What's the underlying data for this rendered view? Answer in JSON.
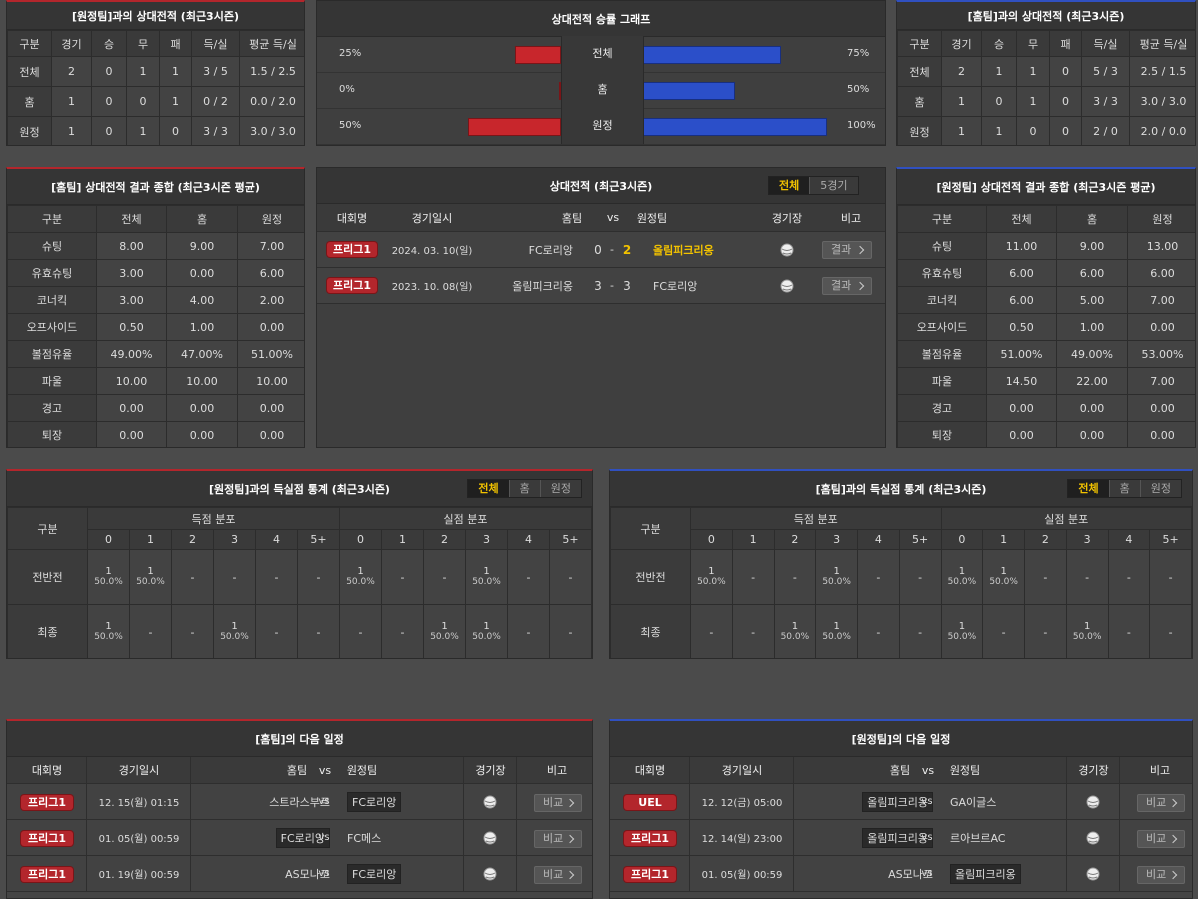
{
  "h2h_away": {
    "title": "[원정팀]과의 상대전적 (최근3시즌)",
    "columns": [
      "구분",
      "경기",
      "승",
      "무",
      "패",
      "득/실",
      "평균 득/실"
    ],
    "rows": [
      [
        "전체",
        2,
        0,
        1,
        1,
        "3 / 5",
        "1.5 / 2.5"
      ],
      [
        "홈",
        1,
        0,
        0,
        1,
        "0 / 2",
        "0.0 / 2.0"
      ],
      [
        "원정",
        1,
        0,
        1,
        0,
        "3 / 3",
        "3.0 / 3.0"
      ]
    ]
  },
  "winrate": {
    "title": "상대전적 승률 그래프",
    "rows": [
      {
        "label": "전체",
        "away": 25,
        "away_label": "25%",
        "home": 75,
        "home_label": "75%"
      },
      {
        "label": "홈",
        "away": 0,
        "away_label": "0%",
        "home": 50,
        "home_label": "50%"
      },
      {
        "label": "원정",
        "away": 50,
        "away_label": "50%",
        "home": 100,
        "home_label": "100%"
      }
    ]
  },
  "h2h_home": {
    "title": "[홈팀]과의 상대전적 (최근3시즌)",
    "columns": [
      "구분",
      "경기",
      "승",
      "무",
      "패",
      "득/실",
      "평균 득/실"
    ],
    "rows": [
      [
        "전체",
        2,
        1,
        1,
        0,
        "5 / 3",
        "2.5 / 1.5"
      ],
      [
        "홈",
        1,
        0,
        1,
        0,
        "3 / 3",
        "3.0 / 3.0"
      ],
      [
        "원정",
        1,
        1,
        0,
        0,
        "2 / 0",
        "2.0 / 0.0"
      ]
    ]
  },
  "summary_home": {
    "title": "[홈팀] 상대전적 결과 종합 (최근3시즌 평균)",
    "columns": [
      "구분",
      "전체",
      "홈",
      "원정"
    ],
    "rows": [
      [
        "슈팅",
        "8.00",
        "9.00",
        "7.00"
      ],
      [
        "유효슈팅",
        "3.00",
        "0.00",
        "6.00"
      ],
      [
        "코너킥",
        "3.00",
        "4.00",
        "2.00"
      ],
      [
        "오프사이드",
        "0.50",
        "1.00",
        "0.00"
      ],
      [
        "볼점유율",
        "49.00%",
        "47.00%",
        "51.00%"
      ],
      [
        "파울",
        "10.00",
        "10.00",
        "10.00"
      ],
      [
        "경고",
        "0.00",
        "0.00",
        "0.00"
      ],
      [
        "퇴장",
        "0.00",
        "0.00",
        "0.00"
      ]
    ]
  },
  "matches": {
    "title": "상대전적 (최근3시즌)",
    "tabs": [
      "전체",
      "5경기"
    ],
    "columns": [
      "대회명",
      "경기일시",
      "홈팀",
      "vs",
      "원정팀",
      "경기장",
      "비고"
    ],
    "rows": [
      {
        "league": "프리그1",
        "date": "2024. 03. 10(일)",
        "home": "FC로리앙",
        "home_score": 0,
        "sep": "-",
        "away_score": 2,
        "away": "올림피크리옹",
        "button": "결과"
      },
      {
        "league": "프리그1",
        "date": "2023. 10. 08(일)",
        "home": "올림피크리옹",
        "home_score": 3,
        "sep": "-",
        "away_score": 3,
        "away": "FC로리앙",
        "button": "결과"
      }
    ]
  },
  "summary_away": {
    "title": "[원정팀] 상대전적 결과 종합 (최근3시즌 평균)",
    "columns": [
      "구분",
      "전체",
      "홈",
      "원정"
    ],
    "rows": [
      [
        "슈팅",
        "11.00",
        "9.00",
        "13.00"
      ],
      [
        "유효슈팅",
        "6.00",
        "6.00",
        "6.00"
      ],
      [
        "코너킥",
        "6.00",
        "5.00",
        "7.00"
      ],
      [
        "오프사이드",
        "0.50",
        "1.00",
        "0.00"
      ],
      [
        "볼점유율",
        "51.00%",
        "49.00%",
        "53.00%"
      ],
      [
        "파울",
        "14.50",
        "22.00",
        "7.00"
      ],
      [
        "경고",
        "0.00",
        "0.00",
        "0.00"
      ],
      [
        "퇴장",
        "0.00",
        "0.00",
        "0.00"
      ]
    ]
  },
  "goals_away": {
    "title": "[원정팀]과의 득실점 통계 (최근3시즌)",
    "tabs": [
      "전체",
      "홈",
      "원정"
    ],
    "col_label": "구분",
    "groups": [
      "득점 분포",
      "실점 분포"
    ],
    "buckets": [
      "0",
      "1",
      "2",
      "3",
      "4",
      "5+"
    ],
    "rows": [
      {
        "label": "전반전",
        "cells": [
          {
            "count": 1,
            "pct": "50.0%"
          },
          {
            "count": 1,
            "pct": "50.0%"
          },
          "-",
          "-",
          "-",
          "-",
          {
            "count": 1,
            "pct": "50.0%"
          },
          "-",
          "-",
          {
            "count": 1,
            "pct": "50.0%"
          },
          "-",
          "-"
        ]
      },
      {
        "label": "최종",
        "cells": [
          {
            "count": 1,
            "pct": "50.0%"
          },
          "-",
          "-",
          {
            "count": 1,
            "pct": "50.0%"
          },
          "-",
          "-",
          "-",
          "-",
          {
            "count": 1,
            "pct": "50.0%"
          },
          {
            "count": 1,
            "pct": "50.0%"
          },
          "-",
          "-"
        ]
      }
    ]
  },
  "goals_home": {
    "title": "[홈팀]과의 득실점 통계 (최근3시즌)",
    "tabs": [
      "전체",
      "홈",
      "원정"
    ],
    "col_label": "구분",
    "groups": [
      "득점 분포",
      "실점 분포"
    ],
    "buckets": [
      "0",
      "1",
      "2",
      "3",
      "4",
      "5+"
    ],
    "rows": [
      {
        "label": "전반전",
        "cells": [
          {
            "count": 1,
            "pct": "50.0%"
          },
          "-",
          "-",
          {
            "count": 1,
            "pct": "50.0%"
          },
          "-",
          "-",
          {
            "count": 1,
            "pct": "50.0%"
          },
          {
            "count": 1,
            "pct": "50.0%"
          },
          "-",
          "-",
          "-",
          "-"
        ]
      },
      {
        "label": "최종",
        "cells": [
          "-",
          "-",
          {
            "count": 1,
            "pct": "50.0%"
          },
          {
            "count": 1,
            "pct": "50.0%"
          },
          "-",
          "-",
          {
            "count": 1,
            "pct": "50.0%"
          },
          "-",
          "-",
          {
            "count": 1,
            "pct": "50.0%"
          },
          "-",
          "-"
        ]
      }
    ]
  },
  "schedule_home": {
    "title": "[홈팀]의 다음 일정",
    "columns": [
      "대회명",
      "경기일시",
      "홈팀",
      "vs",
      "원정팀",
      "경기장",
      "비고"
    ],
    "rows": [
      {
        "league": "프리그1",
        "date": "12. 15(월) 01:15",
        "home": "스트라스부르",
        "vs": "vs",
        "away": "FC로리앙",
        "button": "비교"
      },
      {
        "league": "프리그1",
        "date": "01. 05(월) 00:59",
        "home": "FC로리앙",
        "vs": "vs",
        "away": "FC메스",
        "button": "비교"
      },
      {
        "league": "프리그1",
        "date": "01. 19(월) 00:59",
        "home": "AS모나코",
        "vs": "vs",
        "away": "FC로리앙",
        "button": "비교"
      }
    ]
  },
  "schedule_away": {
    "title": "[원정팀]의 다음 일정",
    "columns": [
      "대회명",
      "경기일시",
      "홈팀",
      "vs",
      "원정팀",
      "경기장",
      "비고"
    ],
    "rows": [
      {
        "league": "UEL",
        "date": "12. 12(금) 05:00",
        "home": "올림피크리옹",
        "vs": "vs",
        "away": "GA이글스",
        "button": "비교"
      },
      {
        "league": "프리그1",
        "date": "12. 14(일) 23:00",
        "home": "올림피크리옹",
        "vs": "vs",
        "away": "르아브르AC",
        "button": "비교"
      },
      {
        "league": "프리그1",
        "date": "01. 05(월) 00:59",
        "home": "AS모나코",
        "vs": "vs",
        "away": "올림피크리옹",
        "button": "비교"
      }
    ]
  }
}
